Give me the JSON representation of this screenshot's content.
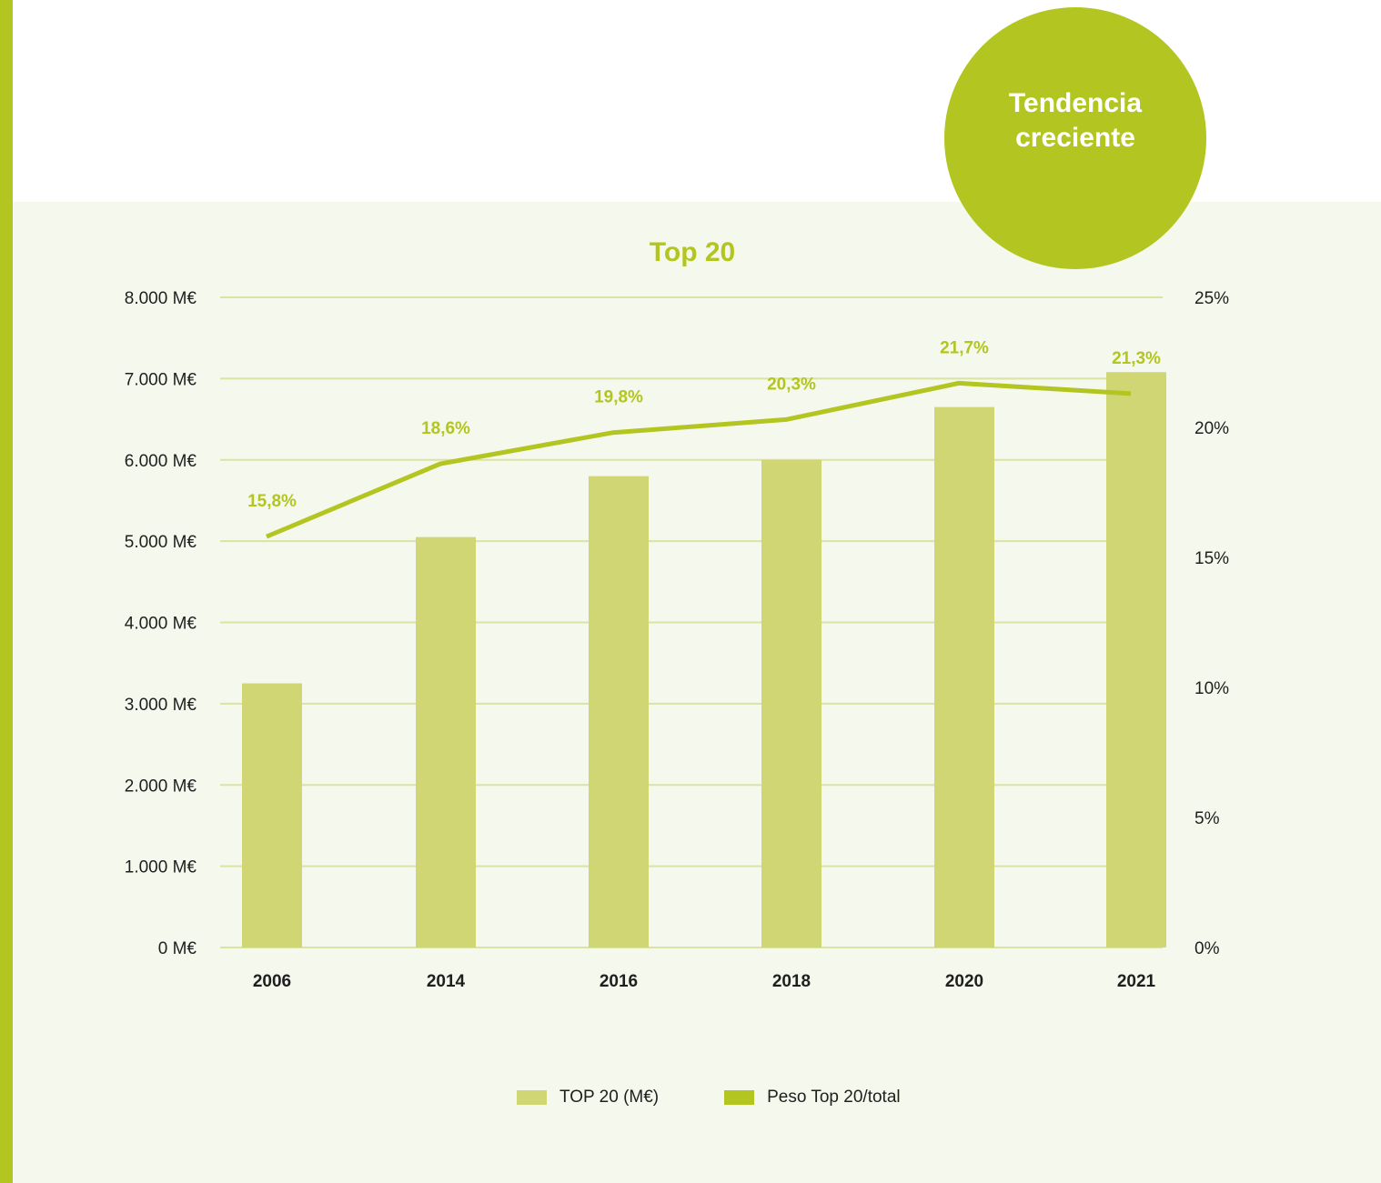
{
  "badge": {
    "line1": "Tendencia",
    "line2": "creciente"
  },
  "colors": {
    "accent": "#b3c520",
    "bar": "#cfd673",
    "panel": "#f5f8ec",
    "grid": "#d9e4a3",
    "text": "#1f1f1f"
  },
  "chart_data": {
    "type": "bar",
    "title": "Top 20",
    "categories": [
      "2006",
      "2014",
      "2016",
      "2018",
      "2020",
      "2021"
    ],
    "series": [
      {
        "name": "TOP 20 (M€)",
        "type": "bar",
        "axis": "left",
        "values": [
          3250,
          5050,
          5800,
          6000,
          6650,
          7080
        ]
      },
      {
        "name": "Peso Top 20/total",
        "type": "line",
        "axis": "right",
        "values": [
          15.8,
          18.6,
          19.8,
          20.3,
          21.7,
          21.3
        ],
        "labels": [
          "15,8%",
          "18,6%",
          "19,8%",
          "20,3%",
          "21,7%",
          "21,3%"
        ]
      }
    ],
    "y_left": {
      "ylim": [
        0,
        8000
      ],
      "ticks": [
        0,
        1000,
        2000,
        3000,
        4000,
        5000,
        6000,
        7000,
        8000
      ],
      "tick_labels": [
        "0 M€",
        "1.000 M€",
        "2.000 M€",
        "3.000 M€",
        "4.000 M€",
        "5.000 M€",
        "6.000 M€",
        "7.000 M€",
        "8.000 M€"
      ]
    },
    "y_right": {
      "ylim": [
        0,
        25
      ],
      "ticks": [
        0,
        5,
        10,
        15,
        20,
        25
      ],
      "tick_labels": [
        "0%",
        "5%",
        "10%",
        "15%",
        "20%",
        "25%"
      ]
    },
    "grid": true,
    "legend": "bottom-center"
  }
}
